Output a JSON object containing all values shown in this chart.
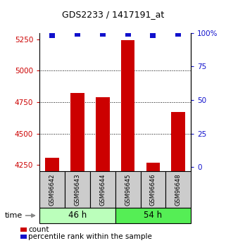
{
  "title": "GDS2233 / 1417191_at",
  "samples": [
    "GSM96642",
    "GSM96643",
    "GSM96644",
    "GSM96645",
    "GSM96646",
    "GSM96648"
  ],
  "counts": [
    4310,
    4820,
    4790,
    5240,
    4270,
    4670
  ],
  "percentiles": [
    98,
    99,
    99,
    99,
    98,
    99
  ],
  "groups": [
    {
      "label": "46 h",
      "color_light": "#ccffcc",
      "color_dark": "#66dd66",
      "size": 3
    },
    {
      "label": "54 h",
      "color_light": "#66ee66",
      "color_dark": "#33cc33",
      "size": 3
    }
  ],
  "ylim_left": [
    4200,
    5300
  ],
  "ylim_right": [
    -3,
    100
  ],
  "yticks_left": [
    4250,
    4500,
    4750,
    5000,
    5250
  ],
  "yticks_right": [
    0,
    25,
    50,
    75,
    100
  ],
  "ytick_labels_right": [
    "0",
    "25",
    "50",
    "75",
    "100%"
  ],
  "gridlines": [
    4500,
    4750,
    5000
  ],
  "bar_color": "#cc0000",
  "dot_color": "#1111cc",
  "dot_size": 30,
  "bar_width": 0.55,
  "sample_box_color": "#cccccc",
  "left_tick_color": "#cc0000",
  "right_tick_color": "#1111cc",
  "bg_color": "#ffffff"
}
